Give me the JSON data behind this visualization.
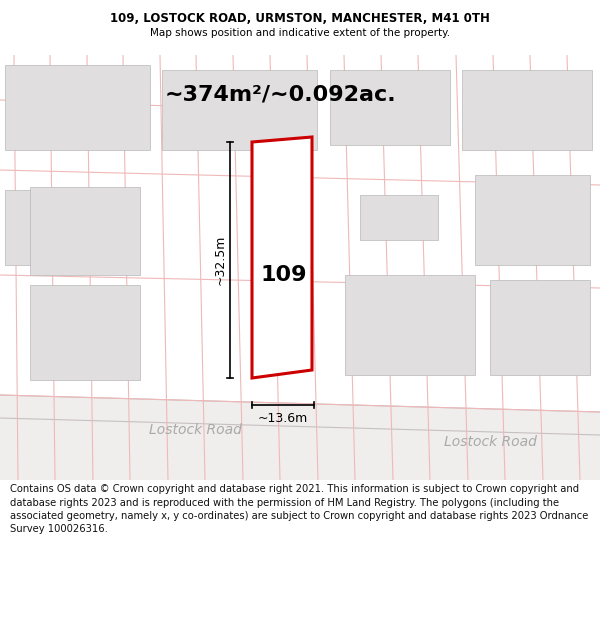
{
  "title_line1": "109, LOSTOCK ROAD, URMSTON, MANCHESTER, M41 0TH",
  "title_line2": "Map shows position and indicative extent of the property.",
  "area_text": "~374m²/~0.092ac.",
  "property_number": "109",
  "dim_width": "~13.6m",
  "dim_height": "~32.5m",
  "road_label1": "Lostock Road",
  "road_label2": "Lostock Road",
  "footer_text": "Contains OS data © Crown copyright and database right 2021. This information is subject to Crown copyright and database rights 2023 and is reproduced with the permission of HM Land Registry. The polygons (including the associated geometry, namely x, y co-ordinates) are subject to Crown copyright and database rights 2023 Ordnance Survey 100026316.",
  "bg_color": "#ffffff",
  "map_bg": "#f8f4f4",
  "grid_line_color": "#f0b8b8",
  "building_color": "#e0dede",
  "building_edge_color": "#b8b8b8",
  "property_outline_color": "#cc0000",
  "title_fontsize": 8.5,
  "subtitle_fontsize": 7.5,
  "area_fontsize": 16,
  "number_fontsize": 16,
  "dim_fontsize": 9,
  "road_fontsize": 10,
  "footer_fontsize": 7.2
}
